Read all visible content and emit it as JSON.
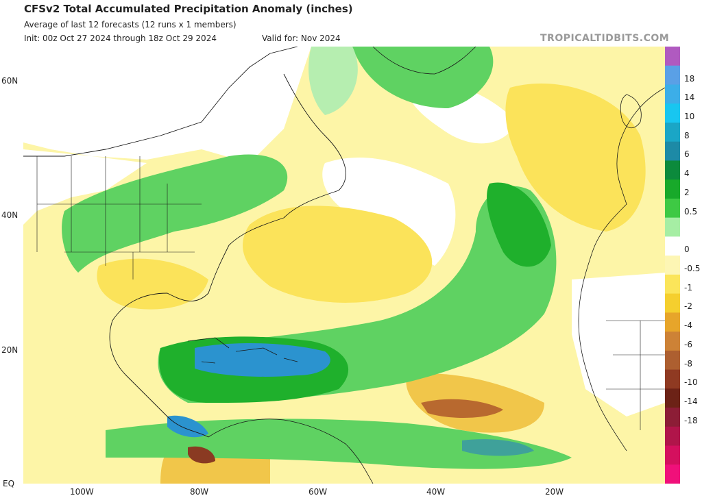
{
  "header": {
    "title": "CFSv2 Total Accumulated Precipitation Anomaly (inches)",
    "subtitle": "Average of last 12 forecasts (12 runs x 1 members)",
    "init": "Init: 00z Oct 27 2024 through 18z Oct 29 2024",
    "valid": "Valid for: Nov 2024",
    "brand": "TROPICALTIDBITS.COM"
  },
  "map": {
    "lat_labels": [
      "60N",
      "40N",
      "20N",
      "EQ"
    ],
    "lon_labels": [
      "100W",
      "80W",
      "60W",
      "40W",
      "20W"
    ],
    "colors": {
      "white": "#ffffff",
      "light_yellow": "#fdf5a7",
      "yellow": "#fbe35a",
      "gold": "#f1c64a",
      "orange": "#e79a2c",
      "brown": "#b8692f",
      "dark_red": "#8a3a22",
      "light_green": "#b6eeb0",
      "green": "#5fd262",
      "dark_green": "#1fb02c",
      "teal": "#3fa19a",
      "blue": "#2b93cf",
      "border": "#1a1a1a"
    }
  },
  "colorbar": {
    "labels": [
      "18",
      "14",
      "10",
      "8",
      "6",
      "4",
      "2",
      "0.5",
      "0",
      "-0.5",
      "-1",
      "-2",
      "-4",
      "-6",
      "-8",
      "-10",
      "-14",
      "-18"
    ],
    "colors": [
      "#b05ac0",
      "#5aa0e6",
      "#3caee8",
      "#18c6f0",
      "#1aa6c6",
      "#1d8aa6",
      "#0c8a3c",
      "#18a92a",
      "#3ec944",
      "#a6eea4",
      "#ffffff",
      "#fdf6b4",
      "#fbe55a",
      "#f5cf2e",
      "#e7a52a",
      "#cd8236",
      "#ad5f30",
      "#8f3a22",
      "#6c2216",
      "#8c1d36",
      "#b0154a",
      "#d4105e",
      "#f0107a"
    ]
  }
}
